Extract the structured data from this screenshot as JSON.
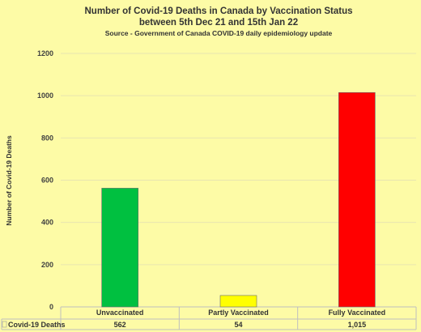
{
  "chart_data": {
    "type": "bar",
    "title": "Number of Covid-19 Deaths in Canada by Vaccination Status",
    "subtitle": "between 5th Dec 21 and 15th Jan 22",
    "source": "Source - Government of Canada COVID-19 daily epidemiology update",
    "ylabel": "Number of Covid-19 Deaths",
    "xlabel": "",
    "ylim": [
      0,
      1200
    ],
    "yticks": [
      0,
      200,
      400,
      600,
      800,
      1000,
      1200
    ],
    "grid": true,
    "categories": [
      "Unvaccinated",
      "Partly Vaccinated",
      "Fully Vaccinated"
    ],
    "series": [
      {
        "name": "Covid-19 Deaths",
        "values": [
          562,
          54,
          1015
        ],
        "value_labels": [
          "562",
          "54",
          "1,015"
        ],
        "colors": [
          "#00c040",
          "#ffff00",
          "#ff0000"
        ]
      }
    ]
  }
}
